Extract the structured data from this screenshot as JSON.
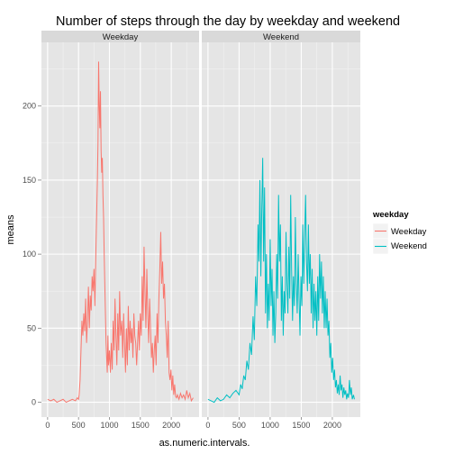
{
  "chart_data": {
    "type": "line",
    "title": "Number of steps through the day by weekday and weekend",
    "xlabel": "as.numeric.intervals.",
    "ylabel": "means",
    "xlim": [
      -100,
      2450
    ],
    "ylim": [
      -10,
      243
    ],
    "x_ticks": [
      0,
      500,
      1000,
      1500,
      2000
    ],
    "y_ticks": [
      0,
      50,
      100,
      150,
      200
    ],
    "grid": true,
    "legend_position": "right",
    "legend_title": "weekday",
    "facets": [
      {
        "label": "Weekday",
        "series": "Weekday"
      },
      {
        "label": "Weekend",
        "series": "Weekend"
      }
    ],
    "series": [
      {
        "name": "Weekday",
        "color": "#F8766D",
        "points": [
          [
            0,
            2
          ],
          [
            50,
            1
          ],
          [
            100,
            2
          ],
          [
            150,
            0
          ],
          [
            200,
            1
          ],
          [
            250,
            2
          ],
          [
            300,
            0
          ],
          [
            350,
            1
          ],
          [
            400,
            2
          ],
          [
            450,
            1
          ],
          [
            480,
            3
          ],
          [
            500,
            2
          ],
          [
            510,
            5
          ],
          [
            525,
            15
          ],
          [
            540,
            35
          ],
          [
            555,
            55
          ],
          [
            570,
            45
          ],
          [
            585,
            60
          ],
          [
            600,
            48
          ],
          [
            615,
            70
          ],
          [
            630,
            40
          ],
          [
            645,
            55
          ],
          [
            660,
            78
          ],
          [
            675,
            50
          ],
          [
            690,
            72
          ],
          [
            705,
            62
          ],
          [
            720,
            85
          ],
          [
            735,
            75
          ],
          [
            750,
            90
          ],
          [
            765,
            65
          ],
          [
            780,
            100
          ],
          [
            795,
            130
          ],
          [
            805,
            150
          ],
          [
            815,
            175
          ],
          [
            825,
            230
          ],
          [
            835,
            200
          ],
          [
            845,
            185
          ],
          [
            855,
            210
          ],
          [
            865,
            170
          ],
          [
            875,
            155
          ],
          [
            885,
            165
          ],
          [
            895,
            140
          ],
          [
            905,
            125
          ],
          [
            915,
            100
          ],
          [
            925,
            80
          ],
          [
            935,
            60
          ],
          [
            945,
            40
          ],
          [
            955,
            30
          ],
          [
            965,
            20
          ],
          [
            975,
            45
          ],
          [
            985,
            25
          ],
          [
            1000,
            35
          ],
          [
            1015,
            20
          ],
          [
            1030,
            40
          ],
          [
            1045,
            22
          ],
          [
            1060,
            55
          ],
          [
            1075,
            35
          ],
          [
            1090,
            70
          ],
          [
            1105,
            45
          ],
          [
            1120,
            25
          ],
          [
            1135,
            60
          ],
          [
            1150,
            35
          ],
          [
            1165,
            75
          ],
          [
            1180,
            45
          ],
          [
            1200,
            55
          ],
          [
            1215,
            30
          ],
          [
            1230,
            60
          ],
          [
            1245,
            40
          ],
          [
            1260,
            20
          ],
          [
            1275,
            50
          ],
          [
            1290,
            25
          ],
          [
            1305,
            65
          ],
          [
            1320,
            35
          ],
          [
            1335,
            55
          ],
          [
            1350,
            40
          ],
          [
            1365,
            50
          ],
          [
            1380,
            30
          ],
          [
            1395,
            60
          ],
          [
            1410,
            45
          ],
          [
            1425,
            40
          ],
          [
            1440,
            25
          ],
          [
            1455,
            40
          ],
          [
            1470,
            55
          ],
          [
            1485,
            35
          ],
          [
            1500,
            60
          ],
          [
            1515,
            45
          ],
          [
            1530,
            85
          ],
          [
            1545,
            55
          ],
          [
            1560,
            105
          ],
          [
            1575,
            75
          ],
          [
            1590,
            50
          ],
          [
            1605,
            90
          ],
          [
            1620,
            60
          ],
          [
            1635,
            40
          ],
          [
            1650,
            70
          ],
          [
            1665,
            50
          ],
          [
            1680,
            30
          ],
          [
            1695,
            40
          ],
          [
            1710,
            20
          ],
          [
            1725,
            35
          ],
          [
            1740,
            45
          ],
          [
            1755,
            25
          ],
          [
            1770,
            60
          ],
          [
            1785,
            40
          ],
          [
            1800,
            70
          ],
          [
            1815,
            90
          ],
          [
            1830,
            115
          ],
          [
            1845,
            80
          ],
          [
            1860,
            95
          ],
          [
            1875,
            70
          ],
          [
            1890,
            80
          ],
          [
            1905,
            55
          ],
          [
            1920,
            45
          ],
          [
            1935,
            30
          ],
          [
            1950,
            55
          ],
          [
            1965,
            20
          ],
          [
            1980,
            15
          ],
          [
            1995,
            22
          ],
          [
            2010,
            8
          ],
          [
            2025,
            18
          ],
          [
            2040,
            5
          ],
          [
            2055,
            12
          ],
          [
            2070,
            4
          ],
          [
            2085,
            3
          ],
          [
            2100,
            5
          ],
          [
            2125,
            2
          ],
          [
            2150,
            6
          ],
          [
            2175,
            3
          ],
          [
            2200,
            5
          ],
          [
            2225,
            2
          ],
          [
            2250,
            8
          ],
          [
            2275,
            3
          ],
          [
            2300,
            6
          ],
          [
            2325,
            1
          ],
          [
            2355,
            3
          ]
        ]
      },
      {
        "name": "Weekend",
        "color": "#00BFC4",
        "points": [
          [
            0,
            2
          ],
          [
            50,
            1
          ],
          [
            100,
            0
          ],
          [
            150,
            3
          ],
          [
            200,
            1
          ],
          [
            250,
            2
          ],
          [
            300,
            5
          ],
          [
            350,
            3
          ],
          [
            400,
            6
          ],
          [
            450,
            8
          ],
          [
            500,
            5
          ],
          [
            525,
            12
          ],
          [
            550,
            9
          ],
          [
            575,
            18
          ],
          [
            600,
            15
          ],
          [
            625,
            28
          ],
          [
            650,
            22
          ],
          [
            675,
            40
          ],
          [
            700,
            32
          ],
          [
            725,
            58
          ],
          [
            745,
            42
          ],
          [
            765,
            85
          ],
          [
            785,
            65
          ],
          [
            805,
            120
          ],
          [
            820,
            95
          ],
          [
            835,
            150
          ],
          [
            850,
            85
          ],
          [
            865,
            130
          ],
          [
            880,
            165
          ],
          [
            895,
            95
          ],
          [
            910,
            145
          ],
          [
            925,
            60
          ],
          [
            940,
            100
          ],
          [
            955,
            50
          ],
          [
            970,
            80
          ],
          [
            985,
            55
          ],
          [
            1000,
            110
          ],
          [
            1015,
            65
          ],
          [
            1030,
            90
          ],
          [
            1045,
            45
          ],
          [
            1060,
            75
          ],
          [
            1075,
            40
          ],
          [
            1090,
            60
          ],
          [
            1105,
            100
          ],
          [
            1120,
            70
          ],
          [
            1135,
            140
          ],
          [
            1150,
            95
          ],
          [
            1165,
            120
          ],
          [
            1180,
            55
          ],
          [
            1195,
            85
          ],
          [
            1210,
            45
          ],
          [
            1225,
            75
          ],
          [
            1240,
            60
          ],
          [
            1255,
            115
          ],
          [
            1270,
            80
          ],
          [
            1285,
            60
          ],
          [
            1300,
            105
          ],
          [
            1315,
            70
          ],
          [
            1330,
            140
          ],
          [
            1345,
            90
          ],
          [
            1360,
            55
          ],
          [
            1375,
            85
          ],
          [
            1390,
            65
          ],
          [
            1405,
            125
          ],
          [
            1420,
            80
          ],
          [
            1435,
            60
          ],
          [
            1450,
            100
          ],
          [
            1465,
            70
          ],
          [
            1480,
            45
          ],
          [
            1495,
            85
          ],
          [
            1510,
            65
          ],
          [
            1525,
            120
          ],
          [
            1540,
            80
          ],
          [
            1555,
            110
          ],
          [
            1570,
            140
          ],
          [
            1585,
            95
          ],
          [
            1600,
            75
          ],
          [
            1615,
            120
          ],
          [
            1630,
            80
          ],
          [
            1645,
            100
          ],
          [
            1660,
            60
          ],
          [
            1675,
            90
          ],
          [
            1690,
            50
          ],
          [
            1705,
            80
          ],
          [
            1720,
            55
          ],
          [
            1735,
            75
          ],
          [
            1750,
            45
          ],
          [
            1765,
            85
          ],
          [
            1780,
            55
          ],
          [
            1795,
            100
          ],
          [
            1810,
            70
          ],
          [
            1825,
            95
          ],
          [
            1840,
            60
          ],
          [
            1855,
            85
          ],
          [
            1870,
            50
          ],
          [
            1885,
            75
          ],
          [
            1900,
            50
          ],
          [
            1915,
            70
          ],
          [
            1930,
            45
          ],
          [
            1945,
            55
          ],
          [
            1960,
            30
          ],
          [
            1975,
            40
          ],
          [
            1990,
            20
          ],
          [
            2005,
            30
          ],
          [
            2020,
            15
          ],
          [
            2035,
            22
          ],
          [
            2050,
            10
          ],
          [
            2065,
            15
          ],
          [
            2080,
            6
          ],
          [
            2095,
            12
          ],
          [
            2110,
            5
          ],
          [
            2125,
            18
          ],
          [
            2140,
            8
          ],
          [
            2155,
            12
          ],
          [
            2170,
            3
          ],
          [
            2185,
            10
          ],
          [
            2200,
            5
          ],
          [
            2215,
            8
          ],
          [
            2230,
            2
          ],
          [
            2245,
            6
          ],
          [
            2260,
            3
          ],
          [
            2275,
            15
          ],
          [
            2290,
            5
          ],
          [
            2305,
            10
          ],
          [
            2320,
            2
          ],
          [
            2340,
            5
          ],
          [
            2355,
            2
          ]
        ]
      }
    ]
  }
}
